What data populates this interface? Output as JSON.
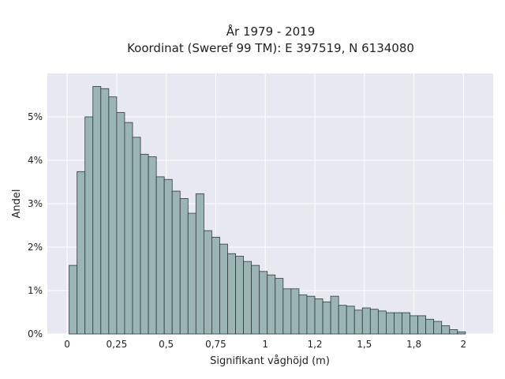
{
  "chart_data": {
    "type": "bar",
    "title_line1": "År 1979 - 2019",
    "title_line2": "Koordinat (Sweref 99 TM): E 397519, N 6134080",
    "xlabel": "Signifikant våghöjd (m)",
    "ylabel": "Andel",
    "xlim": [
      -0.1,
      2.15
    ],
    "ylim": [
      0,
      6.0
    ],
    "x_ticks": [
      0,
      0.25,
      0.5,
      0.75,
      1,
      1.25,
      1.5,
      1.75,
      2
    ],
    "x_tick_labels": [
      "0",
      "0,25",
      "0,5",
      "0,75",
      "1",
      "1,2",
      "1,5",
      "1,8",
      "2"
    ],
    "y_ticks": [
      0,
      1,
      2,
      3,
      4,
      5
    ],
    "y_tick_labels": [
      "0%",
      "1%",
      "2%",
      "3%",
      "4%",
      "5%"
    ],
    "bin_width": 0.04,
    "bin_start": 0.01,
    "values": [
      1.58,
      3.74,
      5.0,
      5.7,
      5.65,
      5.46,
      5.1,
      4.87,
      4.53,
      4.14,
      4.08,
      3.62,
      3.56,
      3.29,
      3.12,
      2.78,
      3.23,
      2.38,
      2.23,
      2.07,
      1.85,
      1.79,
      1.67,
      1.58,
      1.44,
      1.36,
      1.28,
      1.04,
      1.04,
      0.9,
      0.87,
      0.81,
      0.74,
      0.87,
      0.66,
      0.64,
      0.55,
      0.6,
      0.57,
      0.53,
      0.49,
      0.49,
      0.49,
      0.42,
      0.42,
      0.34,
      0.29,
      0.19,
      0.1,
      0.05
    ],
    "grid": true,
    "background": "#e8e8f1",
    "bar_color": "#9bb4b4",
    "edge_color": "#2f3a3a"
  }
}
